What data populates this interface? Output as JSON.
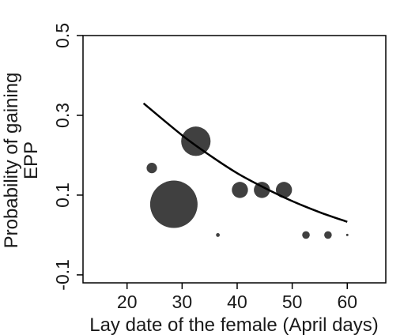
{
  "chart_data": {
    "type": "scatter",
    "xlabel": "Lay date of the female (April days)",
    "ylabel_lines": [
      "Probability of gaining",
      "EPP"
    ],
    "xlim": [
      12,
      67
    ],
    "ylim": [
      -0.12,
      0.5
    ],
    "x_ticks": [
      20,
      30,
      40,
      50,
      60
    ],
    "x_tick_labels": [
      "20",
      "30",
      "40",
      "50",
      "60"
    ],
    "y_ticks": [
      -0.1,
      0.1,
      0.3,
      0.5
    ],
    "y_tick_labels": [
      "-0.1",
      "0.1",
      "0.3",
      "0.5"
    ],
    "grid": false,
    "colors": {
      "points": "#404040",
      "curve": "#000000",
      "axis": "#000000"
    },
    "points": [
      {
        "x": 24.5,
        "y": 0.168,
        "relative_size": 0.55
      },
      {
        "x": 28.5,
        "y": 0.077,
        "relative_size": 2.5
      },
      {
        "x": 32.5,
        "y": 0.235,
        "relative_size": 1.55
      },
      {
        "x": 36.5,
        "y": 0.0,
        "relative_size": 0.2
      },
      {
        "x": 40.5,
        "y": 0.113,
        "relative_size": 0.85
      },
      {
        "x": 44.5,
        "y": 0.113,
        "relative_size": 0.85
      },
      {
        "x": 48.5,
        "y": 0.113,
        "relative_size": 0.85
      },
      {
        "x": 52.5,
        "y": 0.0,
        "relative_size": 0.4
      },
      {
        "x": 56.5,
        "y": 0.0,
        "relative_size": 0.4
      },
      {
        "x": 60.0,
        "y": 0.0,
        "relative_size": 0.1
      }
    ],
    "fit_curve": {
      "x": [
        23,
        30,
        35,
        40,
        45,
        50,
        55,
        60
      ],
      "y": [
        0.33,
        0.25,
        0.2,
        0.155,
        0.118,
        0.085,
        0.057,
        0.033
      ]
    }
  }
}
